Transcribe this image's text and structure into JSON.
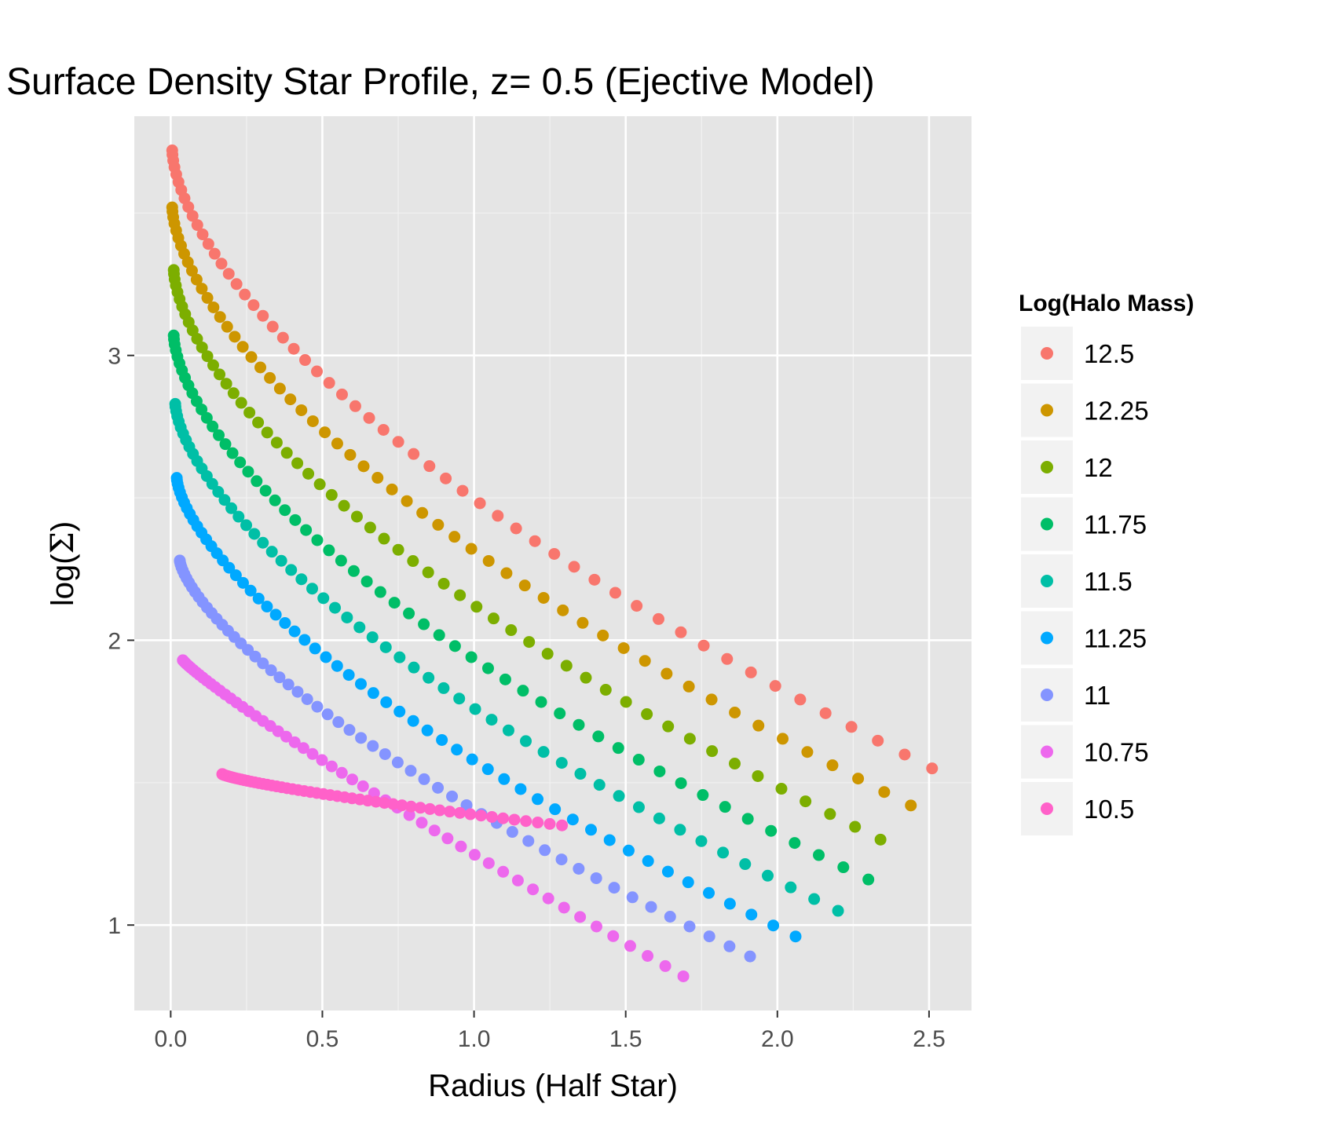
{
  "chart_data": {
    "type": "scatter",
    "title": "Surface Density Star Profile, z= 0.5 (Ejective Model)",
    "xlabel": "Radius (Half Star)",
    "ylabel_prefix": "log(",
    "ylabel_symbol": "Σ",
    "ylabel_suffix": ")",
    "xlim": [
      -0.12,
      2.64
    ],
    "ylim": [
      0.7,
      3.84
    ],
    "x_ticks": [
      0.0,
      0.5,
      1.0,
      1.5,
      2.0,
      2.5
    ],
    "x_tick_labels": [
      "0.0",
      "0.5",
      "1.0",
      "1.5",
      "2.0",
      "2.5"
    ],
    "y_ticks": [
      1,
      2,
      3
    ],
    "y_tick_labels": [
      "1",
      "2",
      "3"
    ],
    "grid": true,
    "legend_title": "Log(Halo Mass)",
    "legend_position": "right",
    "series": [
      {
        "name": "12.5",
        "color": "#F8766D",
        "x_start": 0.005,
        "x_end": 2.51,
        "y_start": 3.72,
        "y_end": 1.55,
        "shape": 0.62
      },
      {
        "name": "12.25",
        "color": "#CD9600",
        "x_start": 0.005,
        "x_end": 2.44,
        "y_start": 3.52,
        "y_end": 1.42,
        "shape": 0.62
      },
      {
        "name": "12",
        "color": "#7CAE00",
        "x_start": 0.01,
        "x_end": 2.34,
        "y_start": 3.3,
        "y_end": 1.3,
        "shape": 0.62
      },
      {
        "name": "11.75",
        "color": "#00BE67",
        "x_start": 0.01,
        "x_end": 2.3,
        "y_start": 3.07,
        "y_end": 1.16,
        "shape": 0.62
      },
      {
        "name": "11.5",
        "color": "#00BFA6",
        "x_start": 0.015,
        "x_end": 2.2,
        "y_start": 2.83,
        "y_end": 1.05,
        "shape": 0.64
      },
      {
        "name": "11.25",
        "color": "#00A9FF",
        "x_start": 0.02,
        "x_end": 2.06,
        "y_start": 2.57,
        "y_end": 0.96,
        "shape": 0.66
      },
      {
        "name": "11",
        "color": "#8494FF",
        "x_start": 0.03,
        "x_end": 1.91,
        "y_start": 2.28,
        "y_end": 0.89,
        "shape": 0.7
      },
      {
        "name": "10.75",
        "color": "#ED68ED",
        "x_start": 0.04,
        "x_end": 1.69,
        "y_start": 1.93,
        "y_end": 0.82,
        "shape": 0.9
      },
      {
        "name": "10.5",
        "color": "#FF61C9",
        "x_start": 0.17,
        "x_end": 1.29,
        "y_start": 1.53,
        "y_end": 1.35,
        "shape": 0.78
      }
    ]
  }
}
